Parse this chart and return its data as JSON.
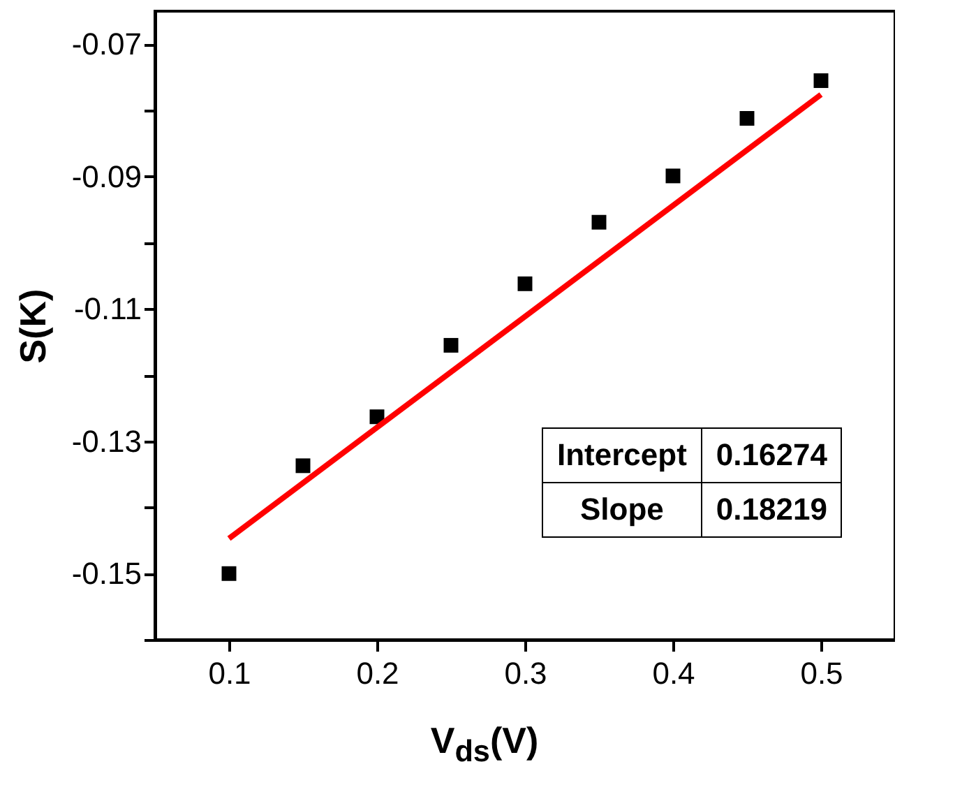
{
  "chart_data": {
    "type": "scatter",
    "xlabel": "V$_{ds}$(V)",
    "ylabel": "S(K)",
    "x": [
      0.1,
      0.15,
      0.2,
      0.25,
      0.3,
      0.35,
      0.4,
      0.45,
      0.5
    ],
    "series": [
      {
        "color": "#000000",
        "marker": "square",
        "values": [
          -0.15,
          -0.1337,
          -0.1263,
          -0.1155,
          -0.1062,
          -0.0969,
          -0.0899,
          -0.0812,
          -0.0755
        ]
      },
      {
        "type": "line",
        "color": "#ff0000",
        "line_style": "solid",
        "x": [
          0.1,
          0.5
        ],
        "values": [
          -0.1447,
          -0.0776
        ]
      }
    ],
    "xlim": [
      0.05,
      0.55
    ],
    "xticks": [
      0.1,
      0.2,
      0.3,
      0.4,
      0.5
    ],
    "ylim": [
      -0.16,
      -0.065
    ],
    "yticks": [
      {
        "value": -0.16,
        "label": null
      },
      -0.15,
      {
        "value": -0.14,
        "label": null
      },
      -0.13,
      {
        "value": -0.12,
        "label": null
      },
      -0.11,
      {
        "value": -0.1,
        "label": null
      },
      -0.09,
      {
        "value": -0.08,
        "label": null
      },
      -0.07
    ],
    "annotations": [
      "Intercept",
      "0.16274",
      "Slope",
      "0.18219"
    ]
  }
}
